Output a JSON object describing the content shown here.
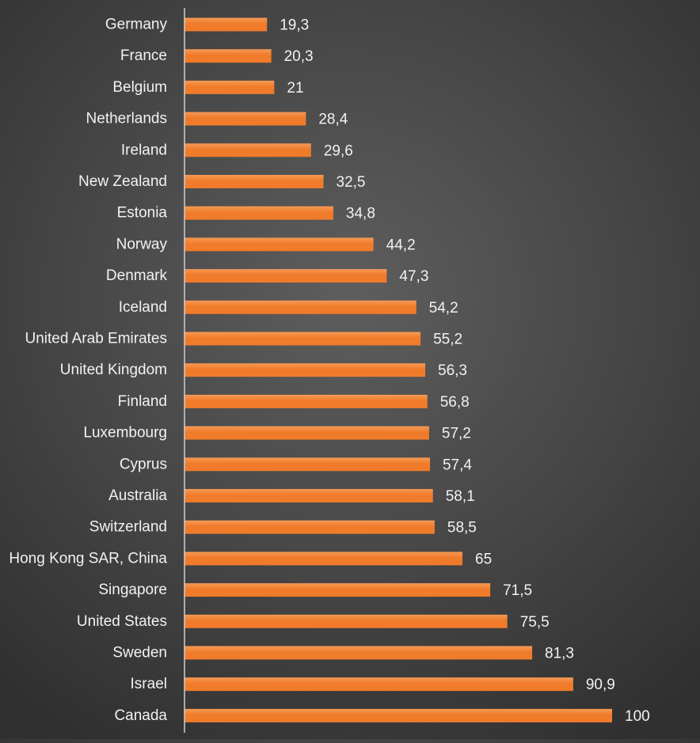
{
  "chart_data": {
    "type": "bar",
    "orientation": "horizontal",
    "categories": [
      "Germany",
      "France",
      "Belgium",
      "Netherlands",
      "Ireland",
      "New Zealand",
      "Estonia",
      "Norway",
      "Denmark",
      "Iceland",
      "United Arab Emirates",
      "United Kingdom",
      "Finland",
      "Luxembourg",
      "Cyprus",
      "Australia",
      "Switzerland",
      "Hong Kong SAR, China",
      "Singapore",
      "United States",
      "Sweden",
      "Israel",
      "Canada"
    ],
    "values": [
      19.3,
      20.3,
      21,
      28.4,
      29.6,
      32.5,
      34.8,
      44.2,
      47.3,
      54.2,
      55.2,
      56.3,
      56.8,
      57.2,
      57.4,
      58.1,
      58.5,
      65,
      71.5,
      75.5,
      81.3,
      90.9,
      100
    ],
    "value_labels": [
      "19,3",
      "20,3",
      "21",
      "28,4",
      "29,6",
      "32,5",
      "34,8",
      "44,2",
      "47,3",
      "54,2",
      "55,2",
      "56,3",
      "56,8",
      "57,2",
      "57,4",
      "58,1",
      "58,5",
      "65",
      "71,5",
      "75,5",
      "81,3",
      "90,9",
      "100"
    ],
    "title": "",
    "xlabel": "",
    "ylabel": "",
    "xlim": [
      0,
      100
    ],
    "grid": false,
    "legend": "none",
    "colors": {
      "bar": "#f07b2a",
      "bar_highlight": "#f59a55",
      "label_text": "#f2f2f2",
      "axis_line": "#d0d0d0",
      "background_center": "#5e5e5e",
      "background_edge": "#303030"
    }
  }
}
